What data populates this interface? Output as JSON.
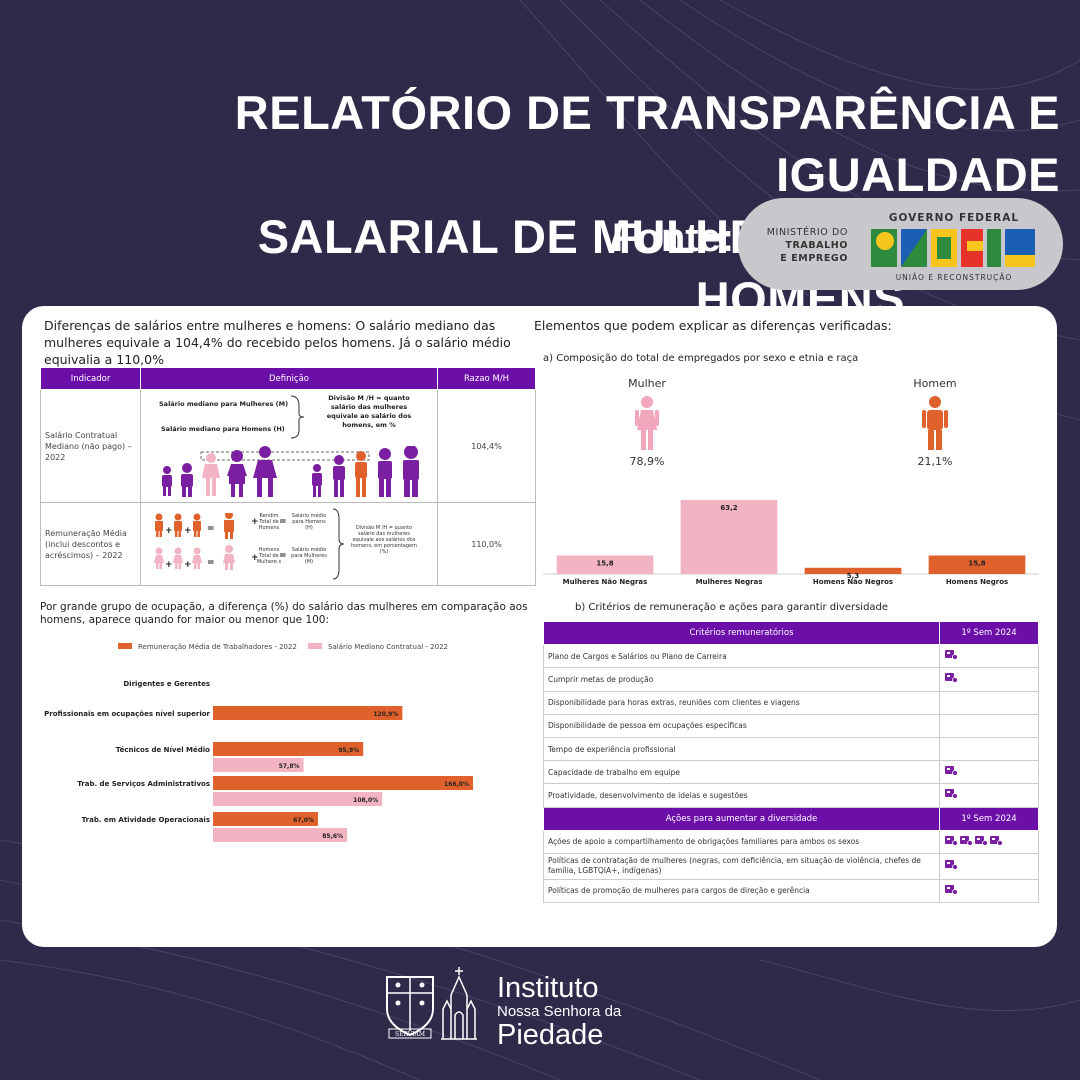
{
  "title": {
    "line1": "RELATÓRIO DE TRANSPARÊNCIA E IGUALDADE",
    "line2": "SALARIAL DE MULHERES E HOMENS"
  },
  "fonte": {
    "label": "Fonte:"
  },
  "gov_badge": {
    "ministerio": [
      "MINISTÉRIO DO",
      "TRABALHO",
      "E EMPREGO"
    ],
    "governo": "GOVERNO FEDERAL",
    "brasil": "BRASIL",
    "uniao": "UNIÃO E RECONSTRUÇÃO",
    "colors": [
      "#2e8b3e",
      "#f7c61e",
      "#1a5fb4",
      "#e5332a"
    ]
  },
  "intro": {
    "left": "Diferenças de salários entre mulheres e homens: O salário mediano das mulheres equivale a 104,4% do recebido pelos homens. Já o salário médio equivalia a 110,0%",
    "right": "Elementos que podem explicar as diferenças verificadas:"
  },
  "table1": {
    "headers": [
      "Indicador",
      "Definição",
      "Razao M/H"
    ],
    "rows": [
      {
        "indicador": "Salário Contratual Mediano (não pago) – 2022",
        "def_m": "Salário mediano para Mulheres (M)",
        "def_h": "Salário mediano para Homens (H)",
        "def_div": "Divisão M /H = quanto salário das mulheres equivale ao salário dos homens, em %",
        "razao": "104,4%"
      },
      {
        "indicador": "Remuneração Média (inclui descontos e acréscimos) – 2022",
        "def_h_total": "Rendim Total de Homens",
        "def_h_media": "Salário médio para Homens (H)",
        "def_m_total": "Homens Total de Mulhere s",
        "def_m_media": "Salário médio para Mulheres (M)",
        "def_div": "Divisão M /H = quanto salário das mulheres equivale aos salários dos homens, em porcentagem (%)",
        "razao": "110,0%"
      }
    ]
  },
  "composition": {
    "subtitle": "a) Composição do total de empregados por sexo e etnia e raça",
    "mulher_label": "Mulher",
    "mulher_pct": "78,9%",
    "homem_label": "Homem",
    "homem_pct": "21,1%"
  },
  "chart_data": [
    {
      "type": "bar",
      "categories": [
        "Mulheres Não Negras",
        "Mulheres Negras",
        "Homens Não Negros",
        "Homens Negros"
      ],
      "values": [
        15.8,
        63.2,
        5.3,
        15.8
      ],
      "labels": [
        "15,8",
        "63,2",
        "5,3",
        "15,8"
      ],
      "colors": [
        "#f2b3c3",
        "#f2b3c3",
        "#e0612b",
        "#e0612b"
      ]
    },
    {
      "type": "bar",
      "orientation": "horizontal",
      "title": "Por grande grupo de ocupação, a diferença (%) do salário das mulheres em comparação aos homens, aparece quando for maior ou menor que 100:",
      "categories": [
        "Dirigentes e Gerentes",
        "Profissionais em ocupações nível superior",
        "Técnicos de Nível Médio",
        "Trab. de Serviços Administrativos",
        "Trab. em Atividade Operacionais"
      ],
      "series": [
        {
          "name": "Remuneração Média de Trabalhadores - 2022",
          "color": "#e0612b",
          "values": [
            null,
            120.9,
            95.9,
            166.0,
            67.0
          ],
          "labels": [
            "",
            "120,9%",
            "95,9%",
            "166,0%",
            "67,0%"
          ]
        },
        {
          "name": "Salário Mediano Contratual - 2022",
          "color": "#f2b3c3",
          "values": [
            null,
            null,
            57.8,
            108.0,
            85.6
          ],
          "labels": [
            "",
            "",
            "57,8%",
            "108,0%",
            "85,6%"
          ]
        }
      ]
    }
  ],
  "criteria": {
    "subtitle": "b) Critérios de remuneração e ações para garantir diversidade",
    "header1": "Critérios remuneratórios",
    "header_sem": "1º Sem 2024",
    "rows": [
      {
        "label": "Plano de Cargos e Salários ou Plano de Carreira",
        "icons": "1"
      },
      {
        "label": "Cumprir metas de produção",
        "icons": "1"
      },
      {
        "label": "Disponibilidade para horas extras, reuniões com clientes e viagens",
        "icons": "0"
      },
      {
        "label": "Disponibilidade de pessoa em ocupações específicas",
        "icons": "0"
      },
      {
        "label": "Tempo de experiência profissional",
        "icons": "0"
      },
      {
        "label": "Capacidade de trabalho em equipe",
        "icons": "1"
      },
      {
        "label": "Proatividade, desenvolvimento de ideias e sugestões",
        "icons": "1"
      }
    ],
    "header2": "Ações para aumentar a diversidade",
    "rows2": [
      {
        "label": "Ações de apoio a compartilhamento de obrigações familiares para ambos os sexos",
        "icons": "4"
      },
      {
        "label": "Políticas de contratação de mulheres (negras, com deficiência, em situação de violência, chefes de família, LGBTQIA+, indígenas)",
        "icons": "1"
      },
      {
        "label": "Políticas de promoção de mulheres para cargos de direção e gerência",
        "icons": "1"
      }
    ]
  },
  "institute": {
    "line1": "Instituto",
    "line2": "Nossa Senhora da",
    "line3": "Piedade",
    "motto": "SERVIAM"
  }
}
